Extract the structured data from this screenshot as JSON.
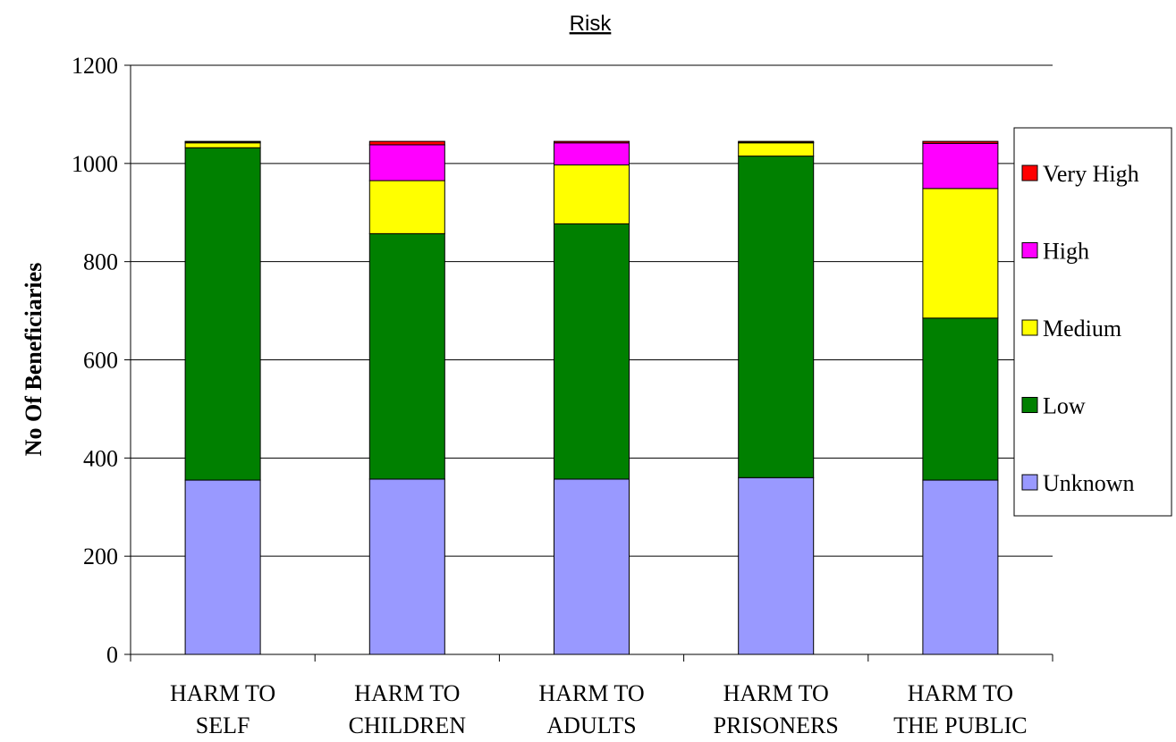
{
  "chart_data": {
    "type": "bar",
    "stacked": true,
    "title": "Risk",
    "xlabel": "",
    "ylabel": "No Of Beneficiaries",
    "ylim": [
      0,
      1200
    ],
    "yticks": [
      0,
      200,
      400,
      600,
      800,
      1000,
      1200
    ],
    "grid": true,
    "legend_position": "right",
    "categories": [
      [
        "HARM TO",
        "SELF"
      ],
      [
        "HARM TO",
        "CHILDREN"
      ],
      [
        "HARM TO",
        "ADULTS"
      ],
      [
        "HARM TO",
        "PRISONERS"
      ],
      [
        "HARM TO",
        "THE PUBLIC"
      ]
    ],
    "series": [
      {
        "name": "Unknown",
        "color": "#9999ff",
        "values": [
          355,
          357,
          357,
          360,
          355
        ]
      },
      {
        "name": "Low",
        "color": "#008000",
        "values": [
          677,
          500,
          520,
          655,
          330
        ]
      },
      {
        "name": "Medium",
        "color": "#ffff00",
        "values": [
          10,
          108,
          120,
          27,
          264
        ]
      },
      {
        "name": "High",
        "color": "#ff00ff",
        "values": [
          2,
          73,
          45,
          1,
          92
        ]
      },
      {
        "name": "Very High",
        "color": "#ff0000",
        "values": [
          1,
          7,
          3,
          2,
          4
        ]
      }
    ]
  }
}
